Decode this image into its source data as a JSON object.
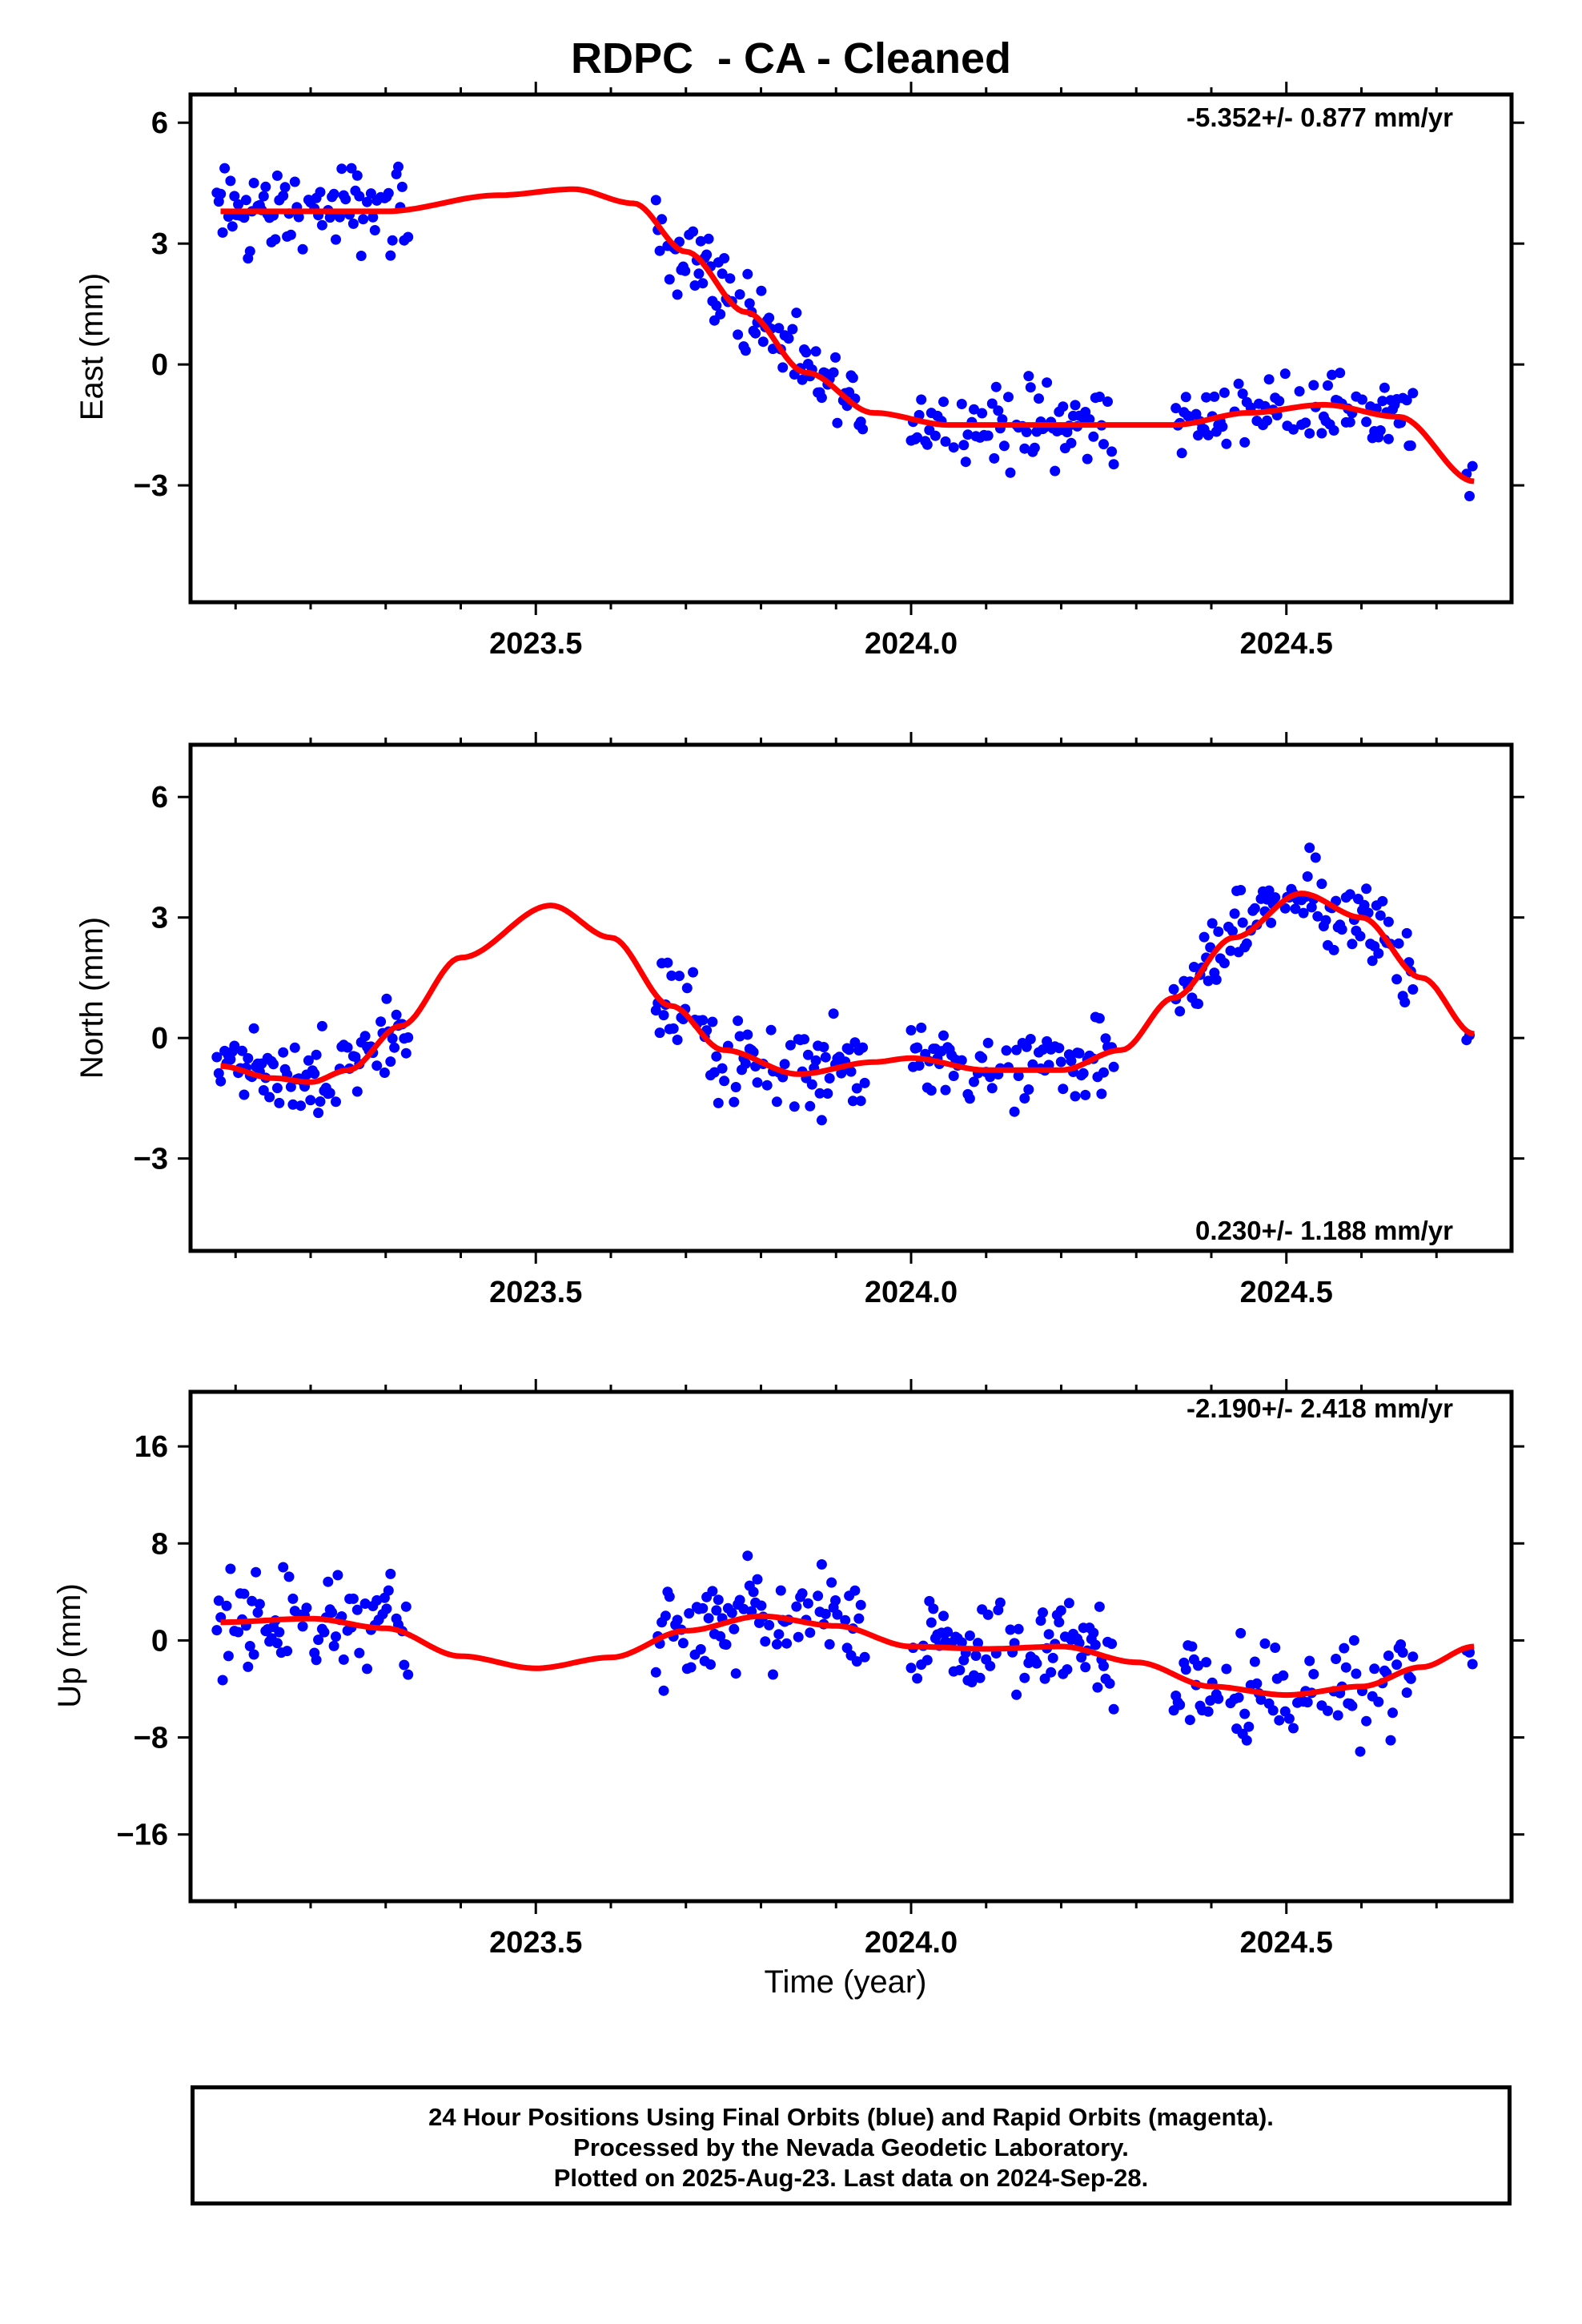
{
  "title": "RDPC  - CA - Cleaned",
  "colors": {
    "data_points": "#0000ff",
    "model_curve": "#ff0000",
    "frame": "#000000"
  },
  "footer": {
    "line1": "24 Hour Positions Using Final Orbits (blue) and Rapid Orbits (magenta).",
    "line2": "Processed by the Nevada Geodetic Laboratory.",
    "line3": "Plotted on 2025-Aug-23. Last data on 2024-Sep-28."
  },
  "chart_data": [
    {
      "type": "scatter",
      "ylabel": "East (mm)",
      "rate": "-5.352+/- 0.877 mm/yr",
      "xlim": [
        2023.04,
        2024.8
      ],
      "ylim": [
        -5.9,
        6.7
      ],
      "xticks": [
        "2023.5",
        "2024.0",
        "2024.5"
      ],
      "yticks": [
        "6",
        "3",
        "0",
        "−3"
      ],
      "series": [
        {
          "kind": "points",
          "segments": [
            {
              "x_start": 2023.075,
              "x_end": 2023.33,
              "step": 0.0026,
              "base": [
                3.8
              ],
              "spread": 1.6
            },
            {
              "x_start": 2023.66,
              "x_end": 2023.94,
              "step": 0.0026,
              "base_from_model": true,
              "spread": 1.5
            },
            {
              "x_start": 2024.0,
              "x_end": 2024.27,
              "step": 0.0027,
              "base_from_model": true,
              "spread": 1.5
            },
            {
              "x_start": 2024.35,
              "x_end": 2024.67,
              "step": 0.0027,
              "base_from_model": true,
              "spread": 1.3
            },
            {
              "x_start": 2024.74,
              "x_end": 2024.75,
              "step": 0.004,
              "base_from_model": true,
              "spread": 2.0
            }
          ]
        },
        {
          "kind": "model",
          "x": [
            2023.08,
            2023.3,
            2023.45,
            2023.55,
            2023.63,
            2023.7,
            2023.78,
            2023.86,
            2023.95,
            2024.05,
            2024.2,
            2024.35,
            2024.45,
            2024.55,
            2024.65,
            2024.75
          ],
          "y": [
            3.8,
            3.8,
            4.2,
            4.35,
            4.0,
            2.8,
            1.3,
            -0.2,
            -1.2,
            -1.5,
            -1.5,
            -1.5,
            -1.2,
            -1.0,
            -1.3,
            -2.9
          ]
        }
      ]
    },
    {
      "type": "scatter",
      "ylabel": "North (mm)",
      "rate": "0.230+/- 1.188 mm/yr",
      "xlim": [
        2023.04,
        2024.8
      ],
      "ylim": [
        -5.3,
        7.3
      ],
      "xticks": [
        "2023.5",
        "2024.0",
        "2024.5"
      ],
      "yticks": [
        "6",
        "3",
        "0",
        "−3"
      ],
      "series": [
        {
          "kind": "points",
          "segments": [
            {
              "x_start": 2023.075,
              "x_end": 2023.33,
              "step": 0.0026,
              "base_from_model": true,
              "spread": 1.5
            },
            {
              "x_start": 2023.66,
              "x_end": 2023.94,
              "step": 0.0026,
              "base_from_model": true,
              "spread": 1.5
            },
            {
              "x_start": 2024.0,
              "x_end": 2024.27,
              "step": 0.0027,
              "base_from_model": true,
              "spread": 1.4
            },
            {
              "x_start": 2024.35,
              "x_end": 2024.67,
              "step": 0.0027,
              "base_from_model": true,
              "spread": 1.4
            },
            {
              "x_start": 2024.74,
              "x_end": 2024.75,
              "step": 0.004,
              "base_from_model": true,
              "spread": 0.8
            }
          ]
        },
        {
          "kind": "model",
          "x": [
            2023.08,
            2023.15,
            2023.2,
            2023.25,
            2023.32,
            2023.4,
            2023.52,
            2023.6,
            2023.68,
            2023.75,
            2023.85,
            2023.95,
            2024.0,
            2024.1,
            2024.2,
            2024.28,
            2024.35,
            2024.43,
            2024.52,
            2024.6,
            2024.68,
            2024.75
          ],
          "y": [
            -0.7,
            -1.0,
            -1.1,
            -0.8,
            0.3,
            2.0,
            3.3,
            2.5,
            0.8,
            -0.3,
            -0.9,
            -0.6,
            -0.5,
            -0.8,
            -0.8,
            -0.3,
            1.0,
            2.5,
            3.6,
            3.0,
            1.5,
            0.1
          ]
        }
      ]
    },
    {
      "type": "scatter",
      "ylabel": "Up (mm)",
      "xlabel": "Time (year)",
      "rate": "-2.190+/- 2.418 mm/yr",
      "xlim": [
        2023.04,
        2024.8
      ],
      "ylim": [
        -21.5,
        20.5
      ],
      "xticks": [
        "2023.5",
        "2024.0",
        "2024.5"
      ],
      "yticks": [
        "16",
        "8",
        "0",
        "−8",
        "−16"
      ],
      "series": [
        {
          "kind": "points",
          "segments": [
            {
              "x_start": 2023.075,
              "x_end": 2023.33,
              "step": 0.0026,
              "base_from_model": true,
              "spread": 6.0
            },
            {
              "x_start": 2023.66,
              "x_end": 2023.94,
              "step": 0.0026,
              "base_from_model": true,
              "spread": 6.0
            },
            {
              "x_start": 2024.0,
              "x_end": 2024.27,
              "step": 0.0027,
              "base_from_model": true,
              "spread": 6.0
            },
            {
              "x_start": 2024.35,
              "x_end": 2024.67,
              "step": 0.0027,
              "base_from_model": true,
              "spread": 6.0
            },
            {
              "x_start": 2024.74,
              "x_end": 2024.75,
              "step": 0.004,
              "base_from_model": true,
              "spread": 3.0
            }
          ]
        },
        {
          "kind": "model",
          "x": [
            2023.08,
            2023.2,
            2023.3,
            2023.4,
            2023.5,
            2023.6,
            2023.7,
            2023.8,
            2023.9,
            2024.0,
            2024.1,
            2024.2,
            2024.3,
            2024.4,
            2024.5,
            2024.6,
            2024.68,
            2024.75
          ],
          "y": [
            1.5,
            1.8,
            1.0,
            -1.3,
            -2.3,
            -1.4,
            0.8,
            2.0,
            1.2,
            -0.5,
            -0.7,
            -0.5,
            -1.8,
            -3.8,
            -4.5,
            -3.8,
            -2.2,
            -0.5
          ]
        }
      ]
    }
  ]
}
